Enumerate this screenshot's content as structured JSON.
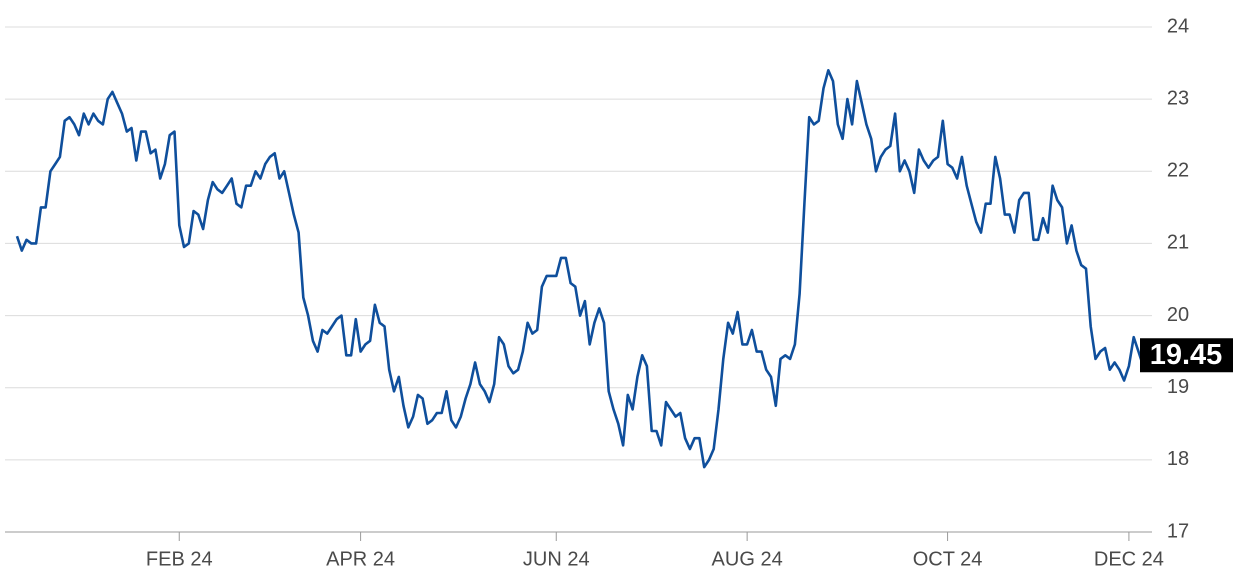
{
  "chart_data": {
    "type": "line",
    "color": "#0f4f9c",
    "values": [
      21.1,
      20.9,
      21.05,
      21.0,
      21.0,
      21.5,
      21.5,
      22.0,
      22.1,
      22.2,
      22.7,
      22.75,
      22.65,
      22.5,
      22.8,
      22.65,
      22.8,
      22.7,
      22.65,
      23.0,
      23.1,
      22.95,
      22.8,
      22.55,
      22.6,
      22.15,
      22.55,
      22.55,
      22.25,
      22.3,
      21.9,
      22.1,
      22.5,
      22.55,
      21.25,
      20.95,
      21.0,
      21.45,
      21.4,
      21.2,
      21.6,
      21.85,
      21.75,
      21.7,
      21.8,
      21.9,
      21.55,
      21.5,
      21.8,
      21.8,
      22.0,
      21.9,
      22.1,
      22.2,
      22.25,
      21.9,
      22.0,
      21.7,
      21.4,
      21.15,
      20.25,
      20.0,
      19.65,
      19.5,
      19.8,
      19.75,
      19.85,
      19.95,
      20.0,
      19.45,
      19.45,
      19.95,
      19.5,
      19.6,
      19.65,
      20.15,
      19.9,
      19.85,
      19.25,
      18.95,
      19.15,
      18.75,
      18.45,
      18.6,
      18.9,
      18.85,
      18.5,
      18.55,
      18.65,
      18.65,
      18.95,
      18.55,
      18.45,
      18.6,
      18.85,
      19.05,
      19.35,
      19.05,
      18.95,
      18.8,
      19.05,
      19.7,
      19.6,
      19.3,
      19.2,
      19.25,
      19.5,
      19.9,
      19.75,
      19.8,
      20.4,
      20.55,
      20.55,
      20.55,
      20.8,
      20.8,
      20.45,
      20.4,
      20.0,
      20.2,
      19.6,
      19.9,
      20.1,
      19.9,
      18.95,
      18.7,
      18.5,
      18.2,
      18.9,
      18.7,
      19.15,
      19.45,
      19.3,
      18.4,
      18.4,
      18.2,
      18.8,
      18.7,
      18.6,
      18.65,
      18.3,
      18.15,
      18.3,
      18.3,
      17.9,
      18.0,
      18.15,
      18.7,
      19.4,
      19.9,
      19.75,
      20.05,
      19.6,
      19.6,
      19.8,
      19.5,
      19.5,
      19.25,
      19.15,
      18.75,
      19.4,
      19.45,
      19.4,
      19.6,
      20.3,
      21.55,
      22.75,
      22.65,
      22.7,
      23.15,
      23.4,
      23.25,
      22.65,
      22.45,
      23.0,
      22.65,
      23.25,
      22.95,
      22.65,
      22.45,
      22.0,
      22.2,
      22.3,
      22.35,
      22.8,
      22.0,
      22.15,
      22.0,
      21.7,
      22.3,
      22.15,
      22.05,
      22.15,
      22.2,
      22.7,
      22.1,
      22.05,
      21.9,
      22.2,
      21.8,
      21.55,
      21.3,
      21.15,
      21.55,
      21.55,
      22.2,
      21.9,
      21.4,
      21.4,
      21.15,
      21.6,
      21.7,
      21.7,
      21.05,
      21.05,
      21.35,
      21.15,
      21.8,
      21.6,
      21.5,
      21.0,
      21.25,
      20.9,
      20.7,
      20.65,
      19.85,
      19.4,
      19.5,
      19.55,
      19.25,
      19.35,
      19.25,
      19.1,
      19.3,
      19.7,
      19.5,
      19.3,
      19.45
    ],
    "xlim": [
      0,
      237
    ],
    "xticks": [
      {
        "value": 34,
        "label": "FEB 24"
      },
      {
        "value": 72,
        "label": "APR 24"
      },
      {
        "value": 113,
        "label": "JUN 24"
      },
      {
        "value": 153,
        "label": "AUG 24"
      },
      {
        "value": 195,
        "label": "OCT 24"
      },
      {
        "value": 233,
        "label": "DEC 24"
      }
    ],
    "ylim": [
      17,
      24
    ],
    "yticks": [
      17,
      18,
      19,
      20,
      21,
      22,
      23,
      24
    ],
    "grid": true
  }
}
